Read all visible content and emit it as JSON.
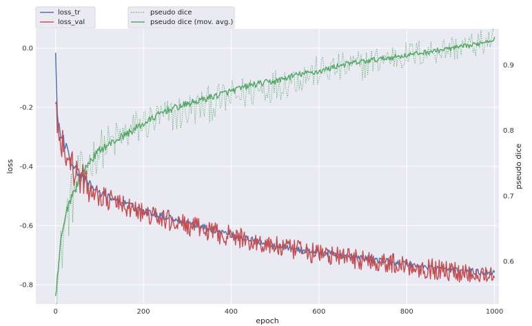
{
  "chart_data": {
    "type": "line",
    "xlabel": "epoch",
    "ylabel": "loss",
    "y2label": "pseudo dice",
    "xlim": [
      -45,
      1010
    ],
    "ylim": [
      -0.865,
      0.065
    ],
    "y2lim": [
      0.535,
      0.955
    ],
    "xticks": [
      0,
      200,
      400,
      600,
      800,
      1000
    ],
    "yticks": [
      0.0,
      -0.2,
      -0.4,
      -0.6,
      -0.8
    ],
    "y2ticks": [
      0.6,
      0.7,
      0.8,
      0.9
    ],
    "grid": true,
    "legend": {
      "left": [
        "loss_tr",
        "loss_val"
      ],
      "right": [
        "pseudo dice",
        "pseudo dice (mov. avg.)"
      ]
    },
    "series": [
      {
        "name": "loss_tr",
        "axis": "left",
        "color": "#4c72b0",
        "style": "solid",
        "x": [
          0,
          5,
          10,
          20,
          30,
          50,
          75,
          100,
          150,
          200,
          250,
          300,
          350,
          400,
          450,
          500,
          550,
          600,
          650,
          700,
          750,
          800,
          850,
          900,
          950,
          1000
        ],
        "values": [
          -0.03,
          -0.25,
          -0.28,
          -0.32,
          -0.36,
          -0.42,
          -0.46,
          -0.49,
          -0.52,
          -0.55,
          -0.57,
          -0.59,
          -0.61,
          -0.63,
          -0.65,
          -0.665,
          -0.68,
          -0.69,
          -0.7,
          -0.71,
          -0.72,
          -0.73,
          -0.74,
          -0.75,
          -0.755,
          -0.76
        ]
      },
      {
        "name": "loss_val",
        "axis": "left",
        "color": "#c44e52",
        "style": "solid",
        "x": [
          0,
          5,
          10,
          20,
          30,
          50,
          75,
          100,
          150,
          200,
          250,
          300,
          350,
          400,
          450,
          500,
          550,
          600,
          650,
          700,
          750,
          800,
          850,
          900,
          950,
          1000
        ],
        "values": [
          -0.15,
          -0.28,
          -0.3,
          -0.34,
          -0.38,
          -0.43,
          -0.47,
          -0.5,
          -0.53,
          -0.56,
          -0.58,
          -0.6,
          -0.62,
          -0.635,
          -0.655,
          -0.67,
          -0.685,
          -0.695,
          -0.705,
          -0.715,
          -0.725,
          -0.735,
          -0.745,
          -0.755,
          -0.76,
          -0.765
        ]
      },
      {
        "name": "pseudo dice",
        "axis": "right",
        "color": "#55a868",
        "style": "dotted",
        "x": [
          0,
          10,
          20,
          30,
          50,
          75,
          100,
          150,
          200,
          250,
          300,
          350,
          400,
          450,
          500,
          550,
          600,
          650,
          700,
          750,
          800,
          850,
          900,
          950,
          1000
        ],
        "values": [
          0.54,
          0.6,
          0.65,
          0.68,
          0.72,
          0.75,
          0.77,
          0.79,
          0.81,
          0.82,
          0.83,
          0.84,
          0.85,
          0.86,
          0.87,
          0.88,
          0.89,
          0.895,
          0.9,
          0.91,
          0.915,
          0.92,
          0.925,
          0.93,
          0.94
        ]
      },
      {
        "name": "pseudo dice (mov. avg.)",
        "axis": "right",
        "color": "#55a868",
        "style": "solid",
        "x": [
          0,
          10,
          20,
          30,
          50,
          75,
          100,
          150,
          200,
          250,
          300,
          350,
          400,
          450,
          500,
          550,
          600,
          650,
          700,
          750,
          800,
          850,
          900,
          950,
          1000
        ],
        "values": [
          0.54,
          0.62,
          0.66,
          0.69,
          0.72,
          0.75,
          0.77,
          0.79,
          0.81,
          0.83,
          0.84,
          0.85,
          0.86,
          0.87,
          0.875,
          0.885,
          0.89,
          0.9,
          0.905,
          0.91,
          0.915,
          0.92,
          0.925,
          0.93,
          0.94
        ]
      }
    ]
  }
}
